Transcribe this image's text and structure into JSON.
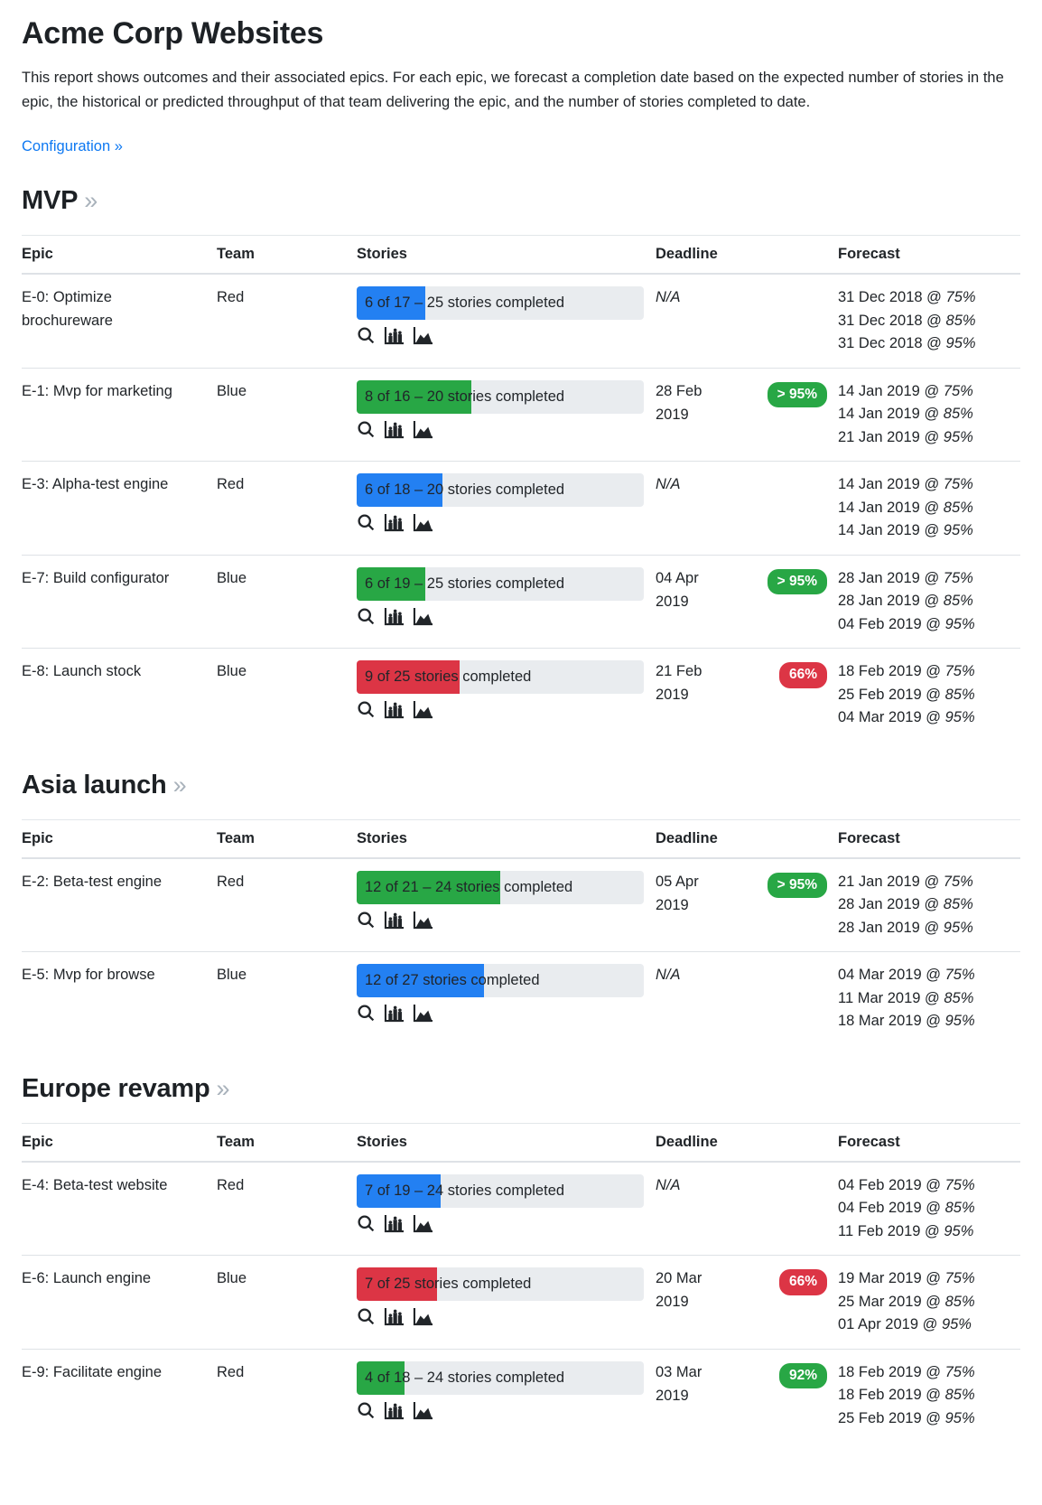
{
  "page": {
    "title": "Acme Corp Websites",
    "description": "This report shows outcomes and their associated epics. For each epic, we forecast a completion date based on the expected number of stories in the epic, the historical or predicted throughput of that team delivering the epic, and the number of stories completed to date.",
    "config_link_label": "Configuration »"
  },
  "labels": {
    "section_marker": "»",
    "at": "@"
  },
  "icons": {
    "search": "search-icon (magnifier)",
    "bar_chart": "bar-chart-icon",
    "area_chart": "area-chart-icon"
  },
  "colors": {
    "blue": "#2380f2",
    "green": "#28a745",
    "red": "#dc3545",
    "link_blue": "#0d78f2",
    "bar_background": "#e9ecef",
    "text": "#212529",
    "heading_marker_gray": "#a9b2bb",
    "border_gray": "#dee2e6",
    "badge_text": "#ffffff"
  },
  "columns": [
    "Epic",
    "Team",
    "Stories",
    "Deadline",
    "Forecast"
  ],
  "sections": [
    {
      "heading": "MVP",
      "rows": [
        {
          "epic": "E-0: Optimize brochureware",
          "team": "Red",
          "stories_label": "6 of 17 – 25 stories completed",
          "progress_pct": 24,
          "bar_color": "blue",
          "deadline": "N/A",
          "deadline_na": true,
          "badge": null,
          "forecasts": [
            {
              "date": "31 Dec 2018",
              "pct": "75%"
            },
            {
              "date": "31 Dec 2018",
              "pct": "85%"
            },
            {
              "date": "31 Dec 2018",
              "pct": "95%"
            }
          ]
        },
        {
          "epic": "E-1: Mvp for marketing",
          "team": "Blue",
          "stories_label": "8 of 16 – 20 stories completed",
          "progress_pct": 40,
          "bar_color": "green",
          "deadline": "28 Feb 2019",
          "deadline_na": false,
          "badge": {
            "text": "> 95%",
            "color": "green"
          },
          "forecasts": [
            {
              "date": "14 Jan 2019",
              "pct": "75%"
            },
            {
              "date": "14 Jan 2019",
              "pct": "85%"
            },
            {
              "date": "21 Jan 2019",
              "pct": "95%"
            }
          ]
        },
        {
          "epic": "E-3: Alpha-test engine",
          "team": "Red",
          "stories_label": "6 of 18 – 20 stories completed",
          "progress_pct": 30,
          "bar_color": "blue",
          "deadline": "N/A",
          "deadline_na": true,
          "badge": null,
          "forecasts": [
            {
              "date": "14 Jan 2019",
              "pct": "75%"
            },
            {
              "date": "14 Jan 2019",
              "pct": "85%"
            },
            {
              "date": "14 Jan 2019",
              "pct": "95%"
            }
          ]
        },
        {
          "epic": "E-7: Build configurator",
          "team": "Blue",
          "stories_label": "6 of 19 – 25 stories completed",
          "progress_pct": 24,
          "bar_color": "green",
          "deadline": "04 Apr 2019",
          "deadline_na": false,
          "badge": {
            "text": "> 95%",
            "color": "green"
          },
          "forecasts": [
            {
              "date": "28 Jan 2019",
              "pct": "75%"
            },
            {
              "date": "28 Jan 2019",
              "pct": "85%"
            },
            {
              "date": "04 Feb 2019",
              "pct": "95%"
            }
          ]
        },
        {
          "epic": "E-8: Launch stock",
          "team": "Blue",
          "stories_label": "9 of 25 stories completed",
          "progress_pct": 36,
          "bar_color": "red",
          "deadline": "21 Feb 2019",
          "deadline_na": false,
          "badge": {
            "text": "66%",
            "color": "red"
          },
          "forecasts": [
            {
              "date": "18 Feb 2019",
              "pct": "75%"
            },
            {
              "date": "25 Feb 2019",
              "pct": "85%"
            },
            {
              "date": "04 Mar 2019",
              "pct": "95%"
            }
          ]
        }
      ]
    },
    {
      "heading": "Asia launch",
      "rows": [
        {
          "epic": "E-2: Beta-test engine",
          "team": "Red",
          "stories_label": "12 of 21 – 24 stories completed",
          "progress_pct": 50,
          "bar_color": "green",
          "deadline": "05 Apr 2019",
          "deadline_na": false,
          "badge": {
            "text": "> 95%",
            "color": "green"
          },
          "forecasts": [
            {
              "date": "21 Jan 2019",
              "pct": "75%"
            },
            {
              "date": "28 Jan 2019",
              "pct": "85%"
            },
            {
              "date": "28 Jan 2019",
              "pct": "95%"
            }
          ]
        },
        {
          "epic": "E-5: Mvp for browse",
          "team": "Blue",
          "stories_label": "12 of 27 stories completed",
          "progress_pct": 44.4,
          "bar_color": "blue",
          "deadline": "N/A",
          "deadline_na": true,
          "badge": null,
          "forecasts": [
            {
              "date": "04 Mar 2019",
              "pct": "75%"
            },
            {
              "date": "11 Mar 2019",
              "pct": "85%"
            },
            {
              "date": "18 Mar 2019",
              "pct": "95%"
            }
          ]
        }
      ]
    },
    {
      "heading": "Europe revamp",
      "rows": [
        {
          "epic": "E-4: Beta-test website",
          "team": "Red",
          "stories_label": "7 of 19 – 24 stories completed",
          "progress_pct": 29.2,
          "bar_color": "blue",
          "deadline": "N/A",
          "deadline_na": true,
          "badge": null,
          "forecasts": [
            {
              "date": "04 Feb 2019",
              "pct": "75%"
            },
            {
              "date": "04 Feb 2019",
              "pct": "85%"
            },
            {
              "date": "11 Feb 2019",
              "pct": "95%"
            }
          ]
        },
        {
          "epic": "E-6: Launch engine",
          "team": "Blue",
          "stories_label": "7 of 25 stories completed",
          "progress_pct": 28,
          "bar_color": "red",
          "deadline": "20 Mar 2019",
          "deadline_na": false,
          "badge": {
            "text": "66%",
            "color": "red"
          },
          "forecasts": [
            {
              "date": "19 Mar 2019",
              "pct": "75%"
            },
            {
              "date": "25 Mar 2019",
              "pct": "85%"
            },
            {
              "date": "01 Apr 2019",
              "pct": "95%"
            }
          ]
        },
        {
          "epic": "E-9: Facilitate engine",
          "team": "Red",
          "stories_label": "4 of 18 – 24 stories completed",
          "progress_pct": 16.7,
          "bar_color": "green",
          "deadline": "03 Mar 2019",
          "deadline_na": false,
          "badge": {
            "text": "92%",
            "color": "green"
          },
          "forecasts": [
            {
              "date": "18 Feb 2019",
              "pct": "75%"
            },
            {
              "date": "18 Feb 2019",
              "pct": "85%"
            },
            {
              "date": "25 Feb 2019",
              "pct": "95%"
            }
          ]
        }
      ]
    }
  ]
}
